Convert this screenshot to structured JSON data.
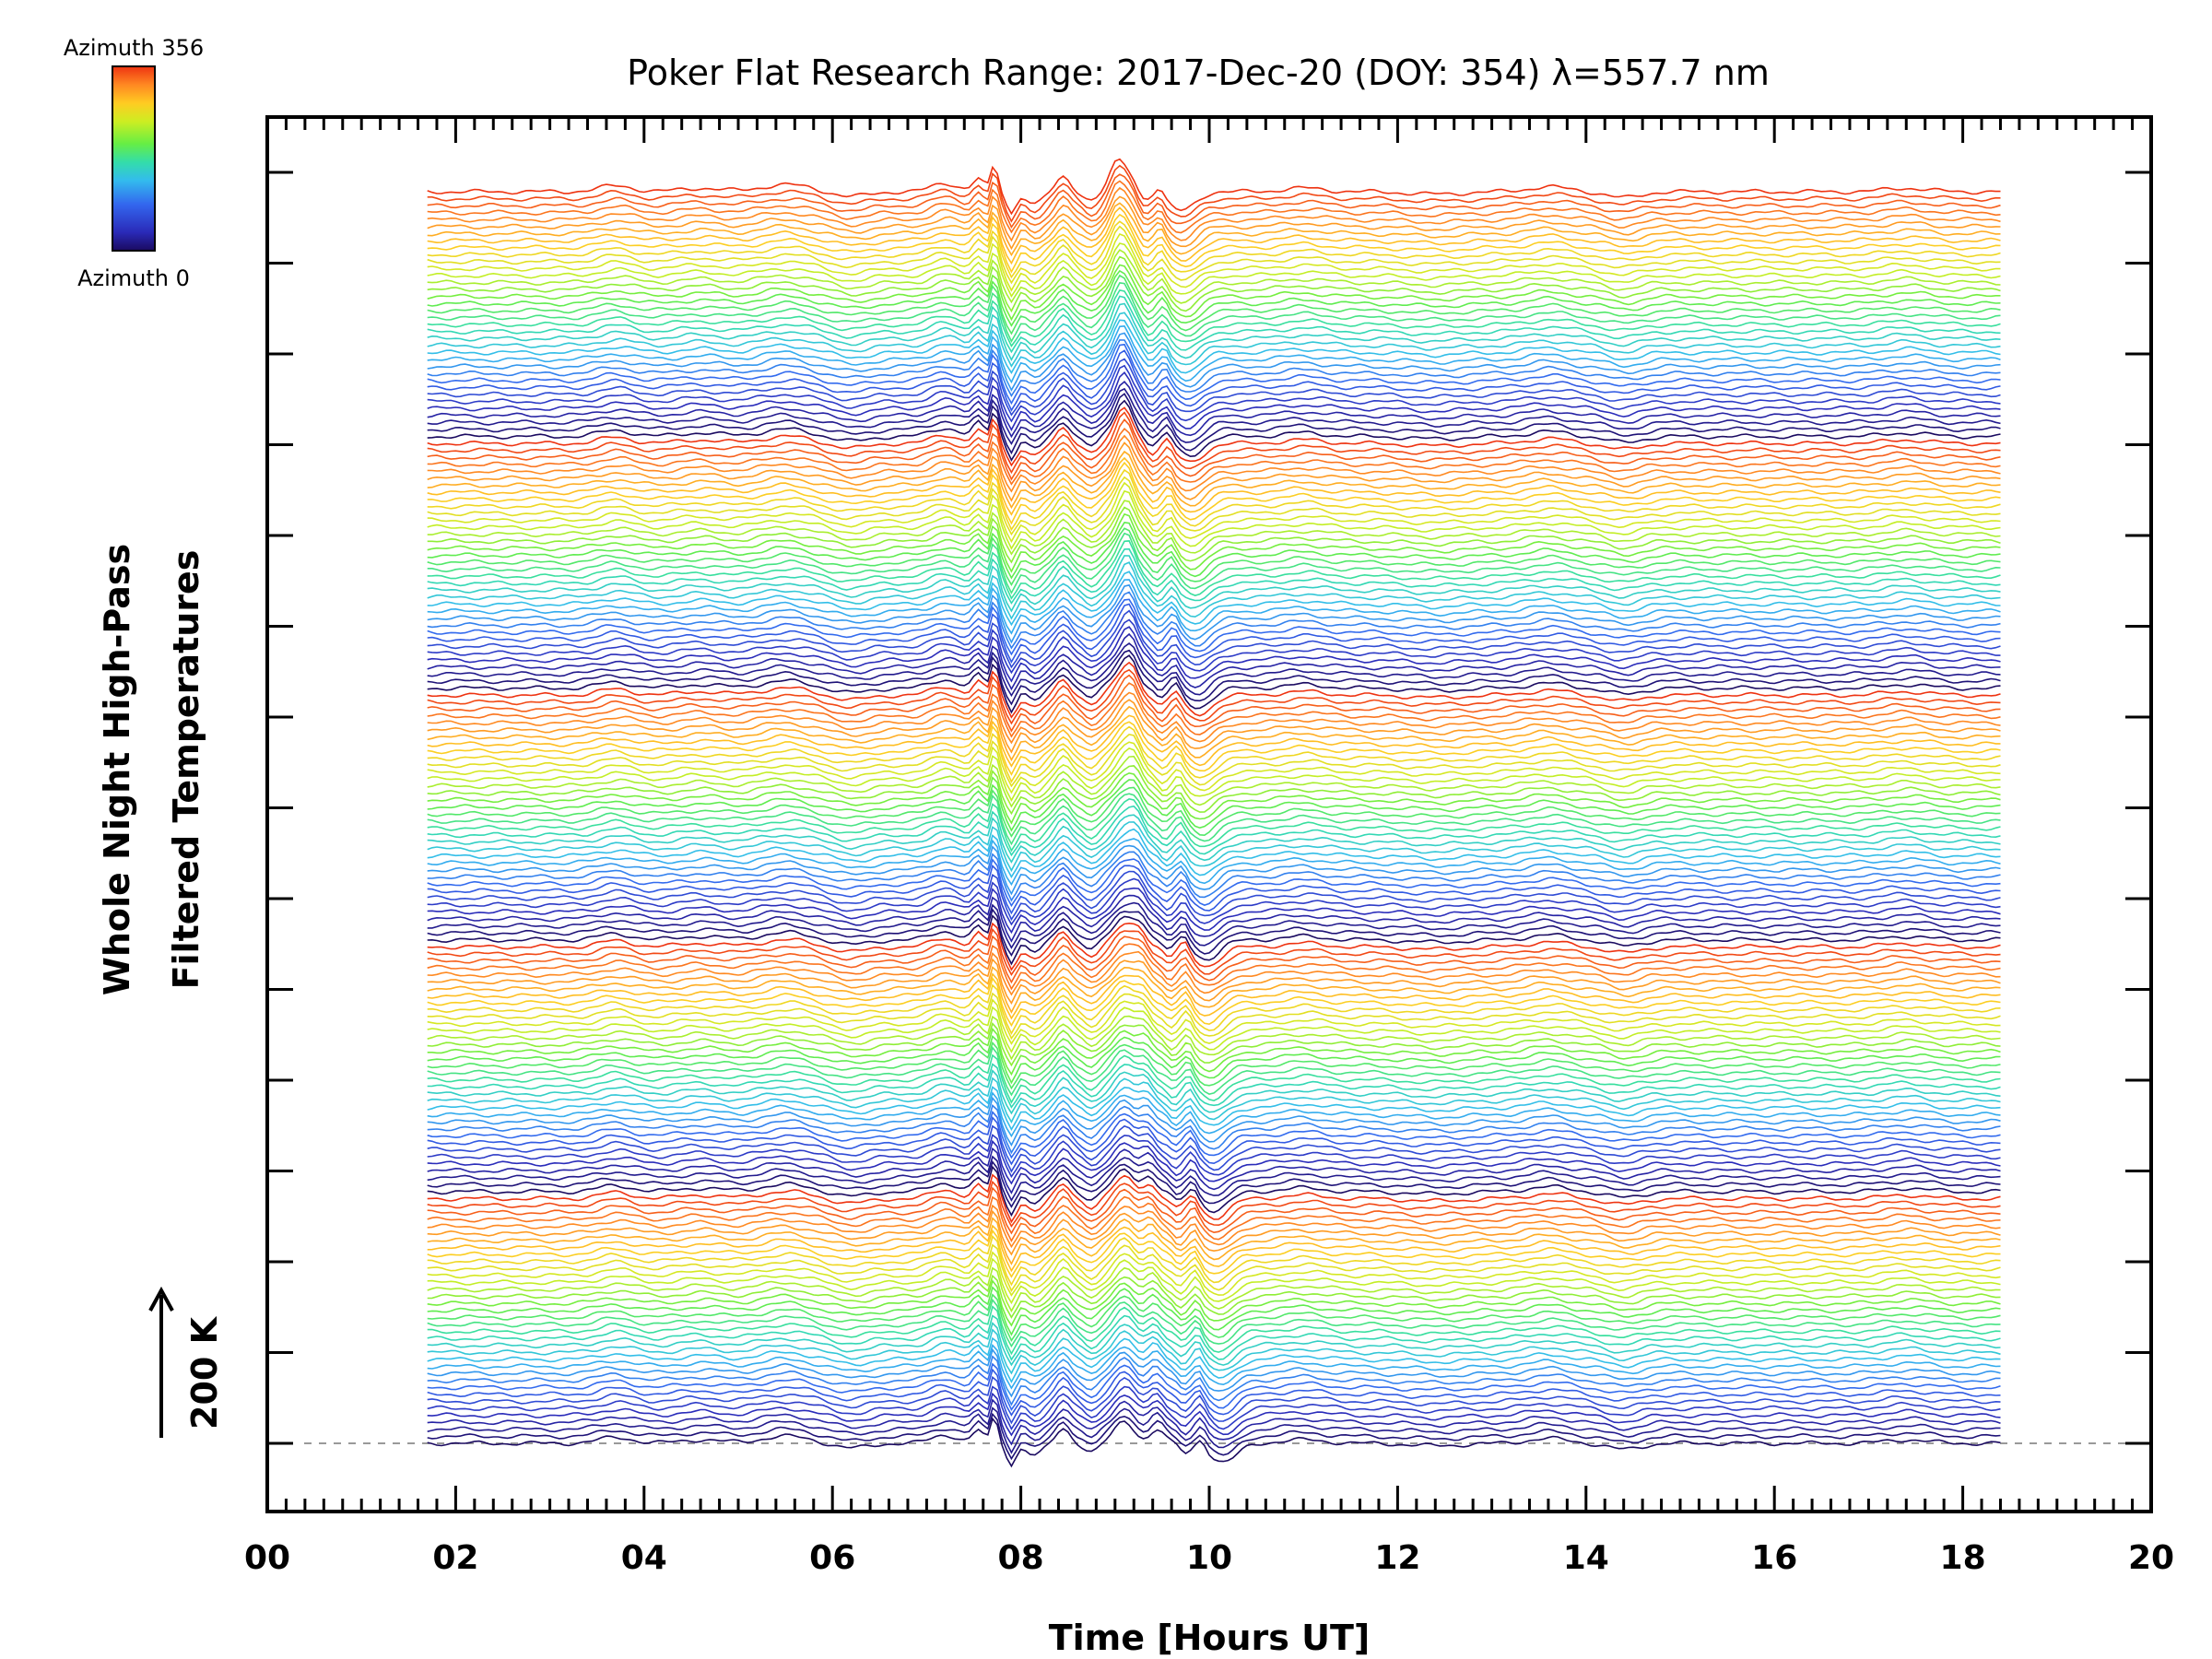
{
  "chart_data": {
    "type": "line",
    "title": "Poker Flat Research Range: 2017-Dec-20 (DOY: 354) λ=557.7 nm",
    "xlabel": "Time [Hours UT]",
    "ylabel": "Whole Night High-Pass",
    "ylabel2": "Filtered Temperatures",
    "scale_label": "200 K",
    "xlim": [
      0,
      20
    ],
    "x_ticks": [
      "00",
      "02",
      "04",
      "06",
      "08",
      "10",
      "12",
      "14",
      "16",
      "18",
      "20"
    ],
    "colorbar": {
      "top_label": "Azimuth 356",
      "bottom_label": "Azimuth 0",
      "colors": [
        "#1a0a60",
        "#2a2ab8",
        "#3366ee",
        "#33bbee",
        "#33ddaa",
        "#66ee44",
        "#ccee22",
        "#ffcc22",
        "#ff8822",
        "#ee3311"
      ]
    },
    "series_time_range": [
      1.7,
      18.4
    ],
    "n_traces": 180,
    "traces_per_cycle": 36,
    "grid": false,
    "legend": "none"
  }
}
